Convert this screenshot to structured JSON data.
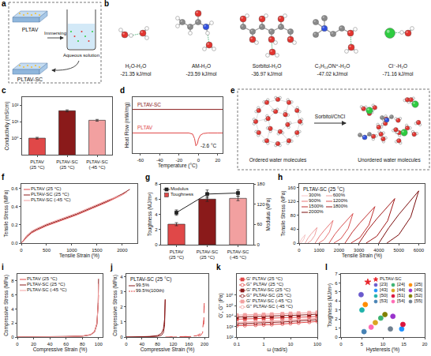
{
  "diagrams": {
    "a": {
      "label": "a",
      "gel": "PLTAV",
      "process": "Immersing",
      "solution": "Aqueous solution",
      "product": "PLTAV-SC"
    },
    "b": {
      "label": "b",
      "pairs": [
        {
          "name": "H₂O-H₂O",
          "energy": "-21.35 kJ/mol"
        },
        {
          "name": "AM-H₂O",
          "energy": "-23.59 kJ/mol"
        },
        {
          "name": "Sorbitol-H₂O",
          "energy": "-36.97 kJ/mol"
        },
        {
          "name": "C₅H₁₄ON⁺-H₂O",
          "energy": "-47.02 kJ/mol"
        },
        {
          "name": "Cl⁻-H₂O",
          "energy": "-71.16 kJ/mol"
        }
      ]
    },
    "e": {
      "label": "e",
      "before": "Ordered water molecules",
      "additive": "Sorbitol/ChCl",
      "after": "Unordered water molecules"
    }
  },
  "chart_data": [
    {
      "label": "c",
      "type": "bar",
      "categories": [
        "PLTAV (25 °C)",
        "PLTAV-SC (25 °C)",
        "PLTAV-SC (-45 °C)"
      ],
      "values": [
        1.0,
        45,
        12
      ],
      "errors": [
        0.12,
        6,
        1.5
      ],
      "colors": [
        "#e04848",
        "#8a1a1a",
        "#f2a0a0"
      ],
      "y_label": "Conductivity (mS/cm)",
      "log": "y",
      "ylim": [
        0.1,
        300
      ],
      "yticks": [
        {
          "value": 1,
          "label": "10⁰"
        },
        {
          "value": 10,
          "label": "10¹"
        },
        {
          "value": 100,
          "label": "10²"
        }
      ]
    },
    {
      "label": "d",
      "type": "line",
      "x_label": "Temperature (°C)",
      "y_label": "Heat Flow (mW/mg)",
      "xlim": [
        -68,
        25
      ],
      "xticks": [
        -60,
        -40,
        -20,
        0,
        20
      ],
      "ylim": [
        0,
        10
      ],
      "tick_labels": "x",
      "series": [
        {
          "name": "PLTAV-SC",
          "color": "#8a1a1a",
          "x": [
            -68,
            -60,
            -40,
            -20,
            0,
            20,
            25
          ],
          "values": [
            7.8,
            7.8,
            7.8,
            7.8,
            7.8,
            7.8,
            7.8
          ]
        },
        {
          "name": "PLTAV",
          "color": "#e04848",
          "x": [
            -68,
            -40,
            -20,
            -10,
            -6,
            -4,
            -2.6,
            -1,
            0,
            2,
            5,
            10,
            20,
            25
          ],
          "values": [
            3.6,
            3.6,
            3.6,
            3.6,
            3.4,
            2.6,
            1.3,
            1.7,
            2.5,
            3.2,
            3.5,
            3.6,
            3.6,
            3.6
          ]
        }
      ],
      "annotations": [
        {
          "text": "-2.6 °C",
          "x": -2.6,
          "y": 1.3
        }
      ]
    },
    {
      "label": "f",
      "type": "line",
      "x_label": "Tensile Strain (%)",
      "y_label": "Tensile Stress (MPa)",
      "xlim": [
        0,
        2300
      ],
      "xticks": [
        0,
        500,
        1000,
        1500,
        2000
      ],
      "ylim": [
        0,
        0.65
      ],
      "yticks": [
        {
          "value": 0,
          "label": "0.0"
        },
        0.2,
        0.4,
        0.6
      ],
      "legend": "upper left",
      "series": [
        {
          "name": "PLTAV (25 °C)",
          "color": "#e04848",
          "x": [
            0,
            100,
            200,
            300,
            500,
            800,
            1100,
            1400,
            1700,
            2000,
            2050
          ],
          "values": [
            0,
            0.06,
            0.11,
            0.14,
            0.19,
            0.25,
            0.31,
            0.38,
            0.45,
            0.53,
            0.55
          ]
        },
        {
          "name": "PLTAV-SC (25 °C)",
          "color": "#8a1a1a",
          "x": [
            0,
            100,
            200,
            300,
            500,
            800,
            1100,
            1400,
            1700,
            2000,
            2150
          ],
          "values": [
            0,
            0.07,
            0.12,
            0.15,
            0.2,
            0.26,
            0.32,
            0.39,
            0.46,
            0.54,
            0.59
          ]
        },
        {
          "name": "PLTAV-SC (-45 °C)",
          "color": "#f2a0a0",
          "x": [
            0,
            100,
            200,
            300,
            500,
            800,
            1100,
            1400,
            1700,
            2000,
            2100
          ],
          "values": [
            0,
            0.08,
            0.13,
            0.16,
            0.21,
            0.27,
            0.33,
            0.4,
            0.47,
            0.53,
            0.56
          ]
        }
      ]
    },
    {
      "label": "g",
      "type": "bar",
      "categories": [
        "PLTAV (25 °C)",
        "PLTAV-SC (25 °C)",
        "PLTAV-SC (-45 °C)"
      ],
      "y_label": "Toughness (MJ/m³)",
      "y2_label": "Modulus (kPa)",
      "ylim": [
        0,
        8
      ],
      "yticks": [
        0,
        2,
        4,
        6,
        8
      ],
      "y2lim": [
        0,
        180
      ],
      "y2ticks": [
        0,
        60,
        120,
        180
      ],
      "legend": "upper left",
      "series": [
        {
          "name": "Modulus",
          "type": "line",
          "axis": "y2",
          "color": "#222222",
          "marker": "square",
          "values": [
            95,
            150,
            153
          ],
          "errors": [
            8,
            12,
            10
          ]
        },
        {
          "name": "Toughness",
          "type": "bar",
          "colors": [
            "#e04848",
            "#8a1a1a",
            "#f2a0a0"
          ],
          "values": [
            2.7,
            6.0,
            6.1
          ],
          "errors": [
            0.2,
            0.3,
            0.3
          ]
        }
      ]
    },
    {
      "label": "h",
      "type": "line",
      "title": "PLTAV-SC (25 °C)",
      "x_label": "Tensile Strain (%)",
      "y_label": "Tensile Stress (kPa)",
      "xlim": [
        0,
        6300
      ],
      "xticks": [
        0,
        1000,
        2000,
        3000,
        4000,
        5000,
        6000
      ],
      "ylim": [
        0,
        170
      ],
      "yticks": [
        0,
        40,
        80,
        120,
        160
      ],
      "legend": "upper left",
      "series": [
        {
          "name": "300%",
          "color": "#f6c4c4",
          "x": [
            0,
            75,
            150,
            225,
            300,
            240,
            150,
            60
          ],
          "values": [
            0,
            8,
            14,
            19,
            24,
            12,
            4,
            0
          ]
        },
        {
          "name": "600%",
          "color": "#f0a0a0",
          "x": [
            300,
            450,
            600,
            750,
            900,
            780,
            600,
            420
          ],
          "values": [
            0,
            15,
            26,
            35,
            45,
            22,
            7,
            0
          ]
        },
        {
          "name": "900%",
          "color": "#e87878",
          "x": [
            800,
            1025,
            1250,
            1475,
            1700,
            1520,
            1250,
            980
          ],
          "values": [
            0,
            20,
            36,
            50,
            65,
            32,
            10,
            0
          ]
        },
        {
          "name": "1200%",
          "color": "#d85050",
          "x": [
            1500,
            1800,
            2100,
            2400,
            2700,
            2460,
            2100,
            1740
          ],
          "values": [
            0,
            26,
            47,
            66,
            85,
            42,
            13,
            0
          ]
        },
        {
          "name": "1500%",
          "color": "#c03030",
          "x": [
            2300,
            2675,
            3050,
            3425,
            3800,
            3500,
            3050,
            2600
          ],
          "values": [
            0,
            32,
            58,
            81,
            105,
            52,
            16,
            0
          ]
        },
        {
          "name": "1800%",
          "color": "#a01818",
          "x": [
            3000,
            3450,
            3900,
            4350,
            4800,
            4440,
            3900,
            3360
          ],
          "values": [
            0,
            38,
            70,
            99,
            128,
            64,
            20,
            0
          ]
        },
        {
          "name": "2000%",
          "color": "#7a0c0c",
          "x": [
            4000,
            4500,
            5000,
            5500,
            6000,
            5600,
            5000,
            4400
          ],
          "values": [
            0,
            44,
            82,
            116,
            150,
            75,
            24,
            0
          ]
        }
      ]
    },
    {
      "label": "i",
      "type": "line",
      "x_label": "Compressive Strain (%)",
      "y_label": "Compressive Stress (MPa)",
      "xlim": [
        0,
        105
      ],
      "xticks": [
        0,
        20,
        40,
        60,
        80,
        100
      ],
      "ylim": [
        0,
        9
      ],
      "yticks": [
        0,
        2,
        4,
        6,
        8
      ],
      "legend": "upper left",
      "series": [
        {
          "name": "PLTAV (25 °C)",
          "color": "#e04848",
          "x": [
            0,
            20,
            40,
            60,
            80,
            90,
            95,
            98,
            99.5,
            100
          ],
          "values": [
            0,
            0.01,
            0.03,
            0.06,
            0.15,
            0.35,
            0.8,
            2.0,
            4.5,
            6.0
          ]
        },
        {
          "name": "PLTAV-SC (25 °C)",
          "color": "#8a1a1a",
          "x": [
            0,
            20,
            40,
            60,
            80,
            90,
            95,
            98,
            99.5,
            100
          ],
          "values": [
            0,
            0.01,
            0.02,
            0.05,
            0.12,
            0.3,
            0.7,
            1.8,
            5.0,
            8.3
          ]
        },
        {
          "name": "PLTAV-SC (-45 °C)",
          "color": "#f2a0a0",
          "x": [
            0,
            20,
            40,
            60,
            80,
            90,
            95,
            98,
            99.5,
            100
          ],
          "values": [
            0,
            0.01,
            0.03,
            0.06,
            0.14,
            0.33,
            0.75,
            1.9,
            4.8,
            7.6
          ]
        }
      ]
    },
    {
      "label": "j",
      "type": "line",
      "title": "PLTAV-SC (25 °C)",
      "x_label": "Compressive Strain (%)",
      "y_label": "Compressive Stress (MPa)",
      "xlim": [
        0,
        210
      ],
      "xticks": [
        0,
        40,
        80,
        120,
        160,
        200
      ],
      "ylim": [
        0,
        4.2
      ],
      "yticks": [
        0,
        1,
        2,
        3,
        4
      ],
      "legend": "upper left",
      "series": [
        {
          "name": "99.5%",
          "color": "#8a1a1a",
          "line_style": "solid",
          "x": [
            0,
            20,
            40,
            60,
            80,
            90,
            95,
            98,
            99.5,
            98,
            95,
            90,
            80,
            60,
            40,
            20,
            0
          ],
          "values": [
            0,
            0.01,
            0.02,
            0.04,
            0.1,
            0.25,
            0.55,
            1.2,
            2.5,
            0.8,
            0.3,
            0.12,
            0.05,
            0.02,
            0.01,
            0,
            0
          ]
        },
        {
          "name": "99.5%(100th)",
          "color": "#e04848",
          "line_style": "dash",
          "x": [
            100,
            120,
            140,
            160,
            180,
            190,
            195,
            198,
            199.5,
            198,
            195,
            190,
            180,
            160,
            140,
            120,
            100
          ],
          "values": [
            0,
            0.01,
            0.02,
            0.04,
            0.09,
            0.23,
            0.5,
            1.1,
            2.4,
            0.75,
            0.28,
            0.11,
            0.05,
            0.02,
            0.01,
            0,
            0
          ]
        }
      ]
    },
    {
      "label": "k",
      "type": "line",
      "x_label": "ω (rad/s)",
      "y_label": "G', G'' (Pa)",
      "log": true,
      "xlim": [
        0.1,
        100
      ],
      "xticks": [
        0.1,
        1,
        10,
        100
      ],
      "ylim": [
        100,
        100000000
      ],
      "yticks": [
        {
          "value": 100,
          "label": "10²"
        },
        {
          "value": 1000,
          "label": "10³"
        },
        {
          "value": 10000,
          "label": "10⁴"
        },
        {
          "value": 100000,
          "label": "10⁵"
        },
        {
          "value": 1000000,
          "label": "10⁶"
        }
      ],
      "legend": "upper left",
      "x": [
        0.1,
        0.2,
        0.5,
        1,
        2,
        5,
        10,
        20,
        50,
        100
      ],
      "series": [
        {
          "name": "G' PLTAV (25 °C)",
          "color": "#e04848",
          "marker": "square",
          "values": [
            5000,
            5200,
            5500,
            5800,
            6100,
            6600,
            7100,
            7600,
            8300,
            9000
          ]
        },
        {
          "name": "G'' PLTAV (25 °C)",
          "color": "#e04848",
          "marker": "circle-open",
          "values": [
            1200,
            1250,
            1350,
            1450,
            1550,
            1750,
            1950,
            2200,
            2600,
            3000
          ]
        },
        {
          "name": "G' PLTAV-SC (25 °C)",
          "color": "#8a1a1a",
          "marker": "square",
          "values": [
            8000,
            8300,
            8800,
            9200,
            9700,
            10500,
            11300,
            12100,
            13500,
            15000
          ]
        },
        {
          "name": "G'' PLTAV-SC (25 °C)",
          "color": "#8a1a1a",
          "marker": "circle-open",
          "values": [
            1800,
            1900,
            2000,
            2150,
            2350,
            2700,
            3000,
            3400,
            4000,
            4500
          ]
        },
        {
          "name": "G' PLTAV-SC (-45 °C)",
          "color": "#f2a0a0",
          "marker": "square",
          "values": [
            12000,
            12500,
            13200,
            13900,
            14700,
            16000,
            17200,
            18500,
            20300,
            22000
          ]
        },
        {
          "name": "G'' PLTAV-SC (-45 °C)",
          "color": "#f2a0a0",
          "marker": "circle-open",
          "values": [
            2500,
            2600,
            2800,
            3000,
            3300,
            3800,
            4300,
            4900,
            5500,
            6000
          ]
        }
      ]
    },
    {
      "label": "l",
      "type": "scatter",
      "x_label": "Hysteresis (%)",
      "y_label": "Toughness (MJ/m³)",
      "xlim": [
        0,
        20
      ],
      "xticks": [
        0,
        5,
        10,
        15,
        20
      ],
      "ylim": [
        0,
        7
      ],
      "yticks": [
        0,
        1,
        2,
        3,
        4,
        5,
        6,
        7
      ],
      "legend": "upper right",
      "series": [
        {
          "name": "PLTAV-SC",
          "color": "#e8232a",
          "marker": "star",
          "x": [
            6.4
          ],
          "values": [
            6.1
          ]
        },
        {
          "name": "[23]",
          "color": "#6a5acd",
          "marker": "circle",
          "x": [
            4.8
          ],
          "values": [
            4.7
          ]
        },
        {
          "name": "[24]",
          "color": "#3cb371",
          "marker": "circle",
          "x": [
            9.5
          ],
          "values": [
            2.1
          ]
        },
        {
          "name": "[25]",
          "color": "#ff8c00",
          "marker": "circle",
          "x": [
            5.8
          ],
          "values": [
            3.6
          ]
        },
        {
          "name": "[43]",
          "color": "#1e90ff",
          "marker": "circle",
          "x": [
            14.5
          ],
          "values": [
            0.9
          ]
        },
        {
          "name": "[44]",
          "color": "#daa520",
          "marker": "circle",
          "x": [
            8.2
          ],
          "values": [
            1.6
          ]
        },
        {
          "name": "[49]",
          "color": "#9932cc",
          "marker": "circle",
          "x": [
            12.4
          ],
          "values": [
            2.3
          ]
        },
        {
          "name": "[50]",
          "color": "#20b2aa",
          "marker": "circle",
          "x": [
            5.0
          ],
          "values": [
            3.0
          ]
        },
        {
          "name": "[51]",
          "color": "#dc143c",
          "marker": "circle",
          "x": [
            14.8
          ],
          "values": [
            1.4
          ]
        },
        {
          "name": "[52]",
          "color": "#808000",
          "marker": "circle",
          "x": [
            10.5
          ],
          "values": [
            2.5
          ]
        },
        {
          "name": "[53]",
          "color": "#4682b4",
          "marker": "circle",
          "x": [
            5.5
          ],
          "values": [
            0.6
          ]
        },
        {
          "name": "[54]",
          "color": "#ff69b4",
          "marker": "circle",
          "x": [
            7.2
          ],
          "values": [
            1.1
          ]
        },
        {
          "name": "[55]",
          "color": "#708090",
          "marker": "circle",
          "x": [
            11.8
          ],
          "values": [
            0.9
          ]
        }
      ]
    }
  ]
}
